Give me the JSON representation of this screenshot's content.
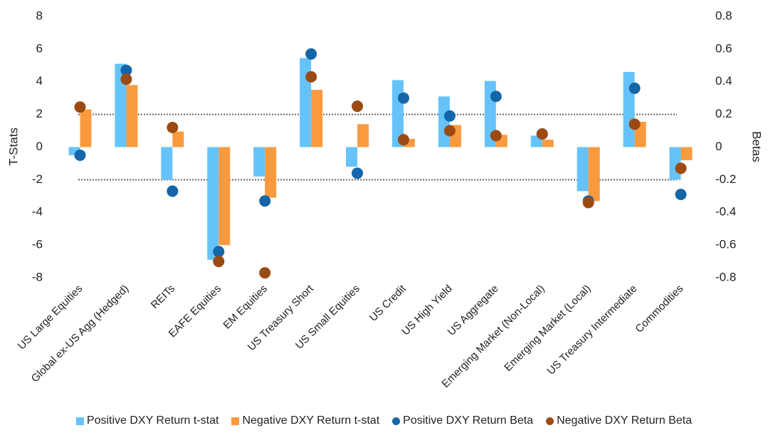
{
  "chart_data": {
    "type": "bar",
    "y_label": "T-Stats",
    "y2_label": "Betas",
    "categories": [
      "US Large Equities",
      "Global ex-US Agg (Hedged)",
      "REITs",
      "EAFE Equities",
      "EM Equities",
      "US Treasury Short",
      "US Small Equities",
      "US Credit",
      "US High Yield",
      "US Aggregate",
      "Emerging Market (Non-Local)",
      "Emerging Market (Local)",
      "US Treasury Intermediate",
      "Commodities"
    ],
    "series": [
      {
        "name": "Positive DXY Return t-stat",
        "type": "bar",
        "color": "#66c3fa",
        "values": [
          -0.5,
          5.1,
          -2.0,
          -6.9,
          -1.8,
          5.45,
          -1.2,
          4.1,
          3.1,
          4.05,
          0.7,
          -2.7,
          4.6,
          -2.0
        ]
      },
      {
        "name": "Negative DXY Return t-stat",
        "type": "bar",
        "color": "#f99a3f",
        "values": [
          2.3,
          3.8,
          0.95,
          -6.0,
          -3.1,
          3.5,
          1.4,
          0.5,
          1.35,
          0.75,
          0.45,
          -3.3,
          1.55,
          -0.8
        ]
      },
      {
        "name": "Positive DXY Return Beta",
        "type": "scatter",
        "axis": "y2",
        "color": "#1566a8",
        "values": [
          -0.05,
          0.47,
          -0.27,
          -0.64,
          -0.33,
          0.57,
          -0.16,
          0.3,
          0.19,
          0.31,
          0.08,
          -0.33,
          0.36,
          -0.29
        ]
      },
      {
        "name": "Negative DXY Return Beta",
        "type": "scatter",
        "axis": "y2",
        "color": "#9c4a13",
        "values": [
          0.245,
          0.415,
          0.12,
          -0.7,
          -0.77,
          0.43,
          0.25,
          0.045,
          0.1,
          0.07,
          0.08,
          -0.34,
          0.14,
          -0.13
        ]
      }
    ],
    "ylim": [
      -8,
      8
    ],
    "yticks": [
      -8,
      -6,
      -4,
      -2,
      0,
      2,
      4,
      6,
      8
    ],
    "y2lim": [
      -0.8,
      0.8
    ],
    "y2ticks": [
      -0.8,
      -0.6,
      -0.4,
      -0.2,
      0,
      0.2,
      0.4,
      0.6,
      0.8
    ],
    "reference_lines": [
      2,
      -2
    ]
  }
}
